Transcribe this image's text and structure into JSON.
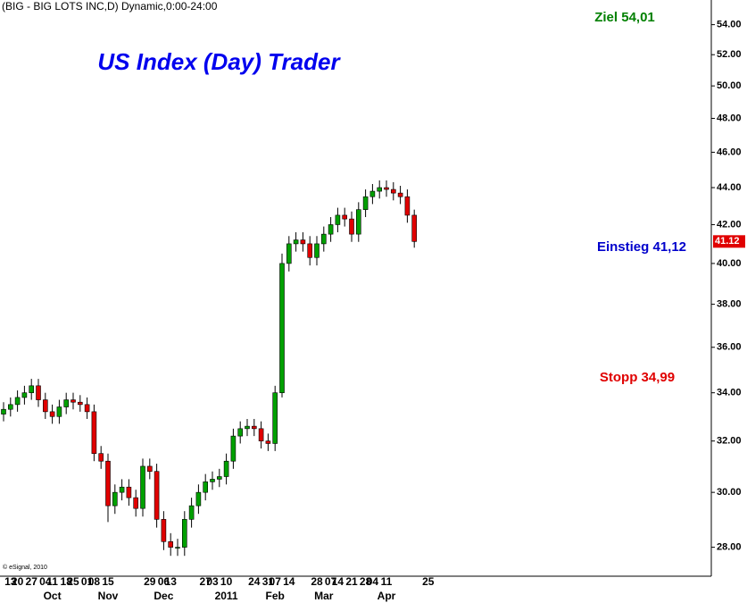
{
  "chart_data": {
    "type": "candlestick",
    "header": "(BIG - BIG LOTS INC,D) Dynamic,0:00-24:00",
    "title": "US Index (Day) Trader",
    "annotations": [
      "Ziel 54,01",
      "Einstieg 41,12",
      "Stopp 34,99"
    ],
    "watermark": "© eSignal, 2010",
    "log_scale": true,
    "up_color": "#00a000",
    "down_color": "#e00000",
    "ylim": [
      27,
      55.7
    ],
    "yticks": [
      {
        "value": 28,
        "label": "28.00"
      },
      {
        "value": 30,
        "label": "30.00"
      },
      {
        "value": 32,
        "label": "32.00"
      },
      {
        "value": 34,
        "label": "34.00"
      },
      {
        "value": 36,
        "label": "36.00"
      },
      {
        "value": 38,
        "label": "38.00"
      },
      {
        "value": 40,
        "label": "40.00"
      },
      {
        "value": 42,
        "label": "42.00"
      },
      {
        "value": 44,
        "label": "44.00"
      },
      {
        "value": 46,
        "label": "46.00"
      },
      {
        "value": 48,
        "label": "48.00"
      },
      {
        "value": 50,
        "label": "50.00"
      },
      {
        "value": 52,
        "label": "52.00"
      },
      {
        "value": 54,
        "label": "54.00"
      }
    ],
    "last_price": {
      "value": 41.12,
      "label": "41.12"
    },
    "categories": [
      null,
      "13",
      "20",
      null,
      "27",
      null,
      "04",
      "11",
      null,
      "18",
      "25",
      null,
      "01",
      "08",
      null,
      "15",
      null,
      null,
      null,
      null,
      null,
      "29",
      null,
      "06",
      "13",
      null,
      null,
      null,
      null,
      "27",
      "03",
      null,
      "10",
      null,
      null,
      null,
      "24",
      null,
      "31",
      "07",
      null,
      "14",
      null,
      null,
      null,
      "28",
      null,
      "07",
      "14",
      null,
      "21",
      null,
      "28",
      "04",
      null,
      "11",
      null,
      null,
      null,
      null,
      null,
      "25"
    ],
    "months": [
      null,
      null,
      null,
      null,
      null,
      null,
      null,
      "Oct",
      null,
      null,
      null,
      null,
      null,
      null,
      null,
      "Nov",
      null,
      null,
      null,
      null,
      null,
      null,
      null,
      "Dec",
      null,
      null,
      null,
      null,
      null,
      null,
      null,
      null,
      "2011",
      null,
      null,
      null,
      null,
      null,
      null,
      "Feb",
      null,
      null,
      null,
      null,
      null,
      null,
      "Mar",
      null,
      null,
      null,
      null,
      null,
      null,
      null,
      null,
      "Apr",
      null,
      null,
      null,
      null,
      null,
      null
    ],
    "open": [
      33.1,
      33.3,
      33.5,
      33.8,
      34.0,
      34.3,
      33.7,
      33.2,
      33.0,
      33.4,
      33.7,
      33.6,
      33.5,
      33.2,
      31.5,
      31.2,
      29.5,
      30.0,
      30.2,
      29.8,
      29.4,
      31.0,
      30.8,
      29.0,
      28.2,
      28.0,
      28.0,
      29.0,
      29.5,
      30.0,
      30.4,
      30.5,
      30.6,
      31.2,
      32.2,
      32.5,
      32.6,
      32.5,
      32.0,
      31.9,
      34.0,
      40.0,
      41.0,
      41.2,
      41.0,
      40.3,
      41.0,
      41.5,
      42.0,
      42.5,
      42.3,
      41.5,
      42.8,
      43.5,
      43.8,
      44.0,
      43.9,
      43.7,
      43.5,
      42.5,
      null,
      null
    ],
    "high": [
      33.6,
      33.8,
      34.1,
      34.3,
      34.6,
      34.6,
      34.0,
      33.5,
      33.7,
      34.0,
      34.0,
      33.9,
      33.8,
      33.5,
      31.8,
      31.5,
      30.3,
      30.5,
      30.5,
      30.1,
      31.3,
      31.3,
      31.1,
      29.3,
      28.5,
      28.3,
      29.3,
      29.8,
      30.3,
      30.7,
      30.8,
      30.9,
      31.5,
      32.5,
      32.8,
      32.9,
      32.9,
      32.8,
      32.3,
      34.3,
      40.5,
      41.4,
      41.6,
      41.6,
      41.4,
      41.4,
      41.9,
      42.4,
      42.9,
      42.9,
      42.7,
      43.2,
      43.9,
      44.2,
      44.4,
      44.4,
      44.3,
      44.1,
      43.9,
      42.8,
      null,
      null
    ],
    "low": [
      32.8,
      33.0,
      33.2,
      33.5,
      33.7,
      33.4,
      32.9,
      32.7,
      32.7,
      33.1,
      33.3,
      33.2,
      32.9,
      31.2,
      30.9,
      28.9,
      29.2,
      29.7,
      29.5,
      29.1,
      29.1,
      30.5,
      28.7,
      27.9,
      27.7,
      27.7,
      27.7,
      28.7,
      29.2,
      29.7,
      30.1,
      30.2,
      30.3,
      30.9,
      31.9,
      32.2,
      32.2,
      31.7,
      31.6,
      31.6,
      33.8,
      39.6,
      40.6,
      40.6,
      39.9,
      39.9,
      40.6,
      41.1,
      41.6,
      41.9,
      41.1,
      41.1,
      42.4,
      43.1,
      43.4,
      43.5,
      43.3,
      43.1,
      42.1,
      40.8,
      null,
      null
    ],
    "close": [
      33.3,
      33.5,
      33.8,
      34.0,
      34.3,
      33.7,
      33.2,
      33.0,
      33.4,
      33.7,
      33.6,
      33.5,
      33.2,
      31.5,
      31.2,
      29.5,
      30.0,
      30.2,
      29.8,
      29.4,
      31.0,
      30.8,
      29.0,
      28.2,
      28.0,
      28.0,
      29.0,
      29.5,
      30.0,
      30.4,
      30.5,
      30.6,
      31.2,
      32.2,
      32.5,
      32.6,
      32.5,
      32.0,
      31.9,
      34.0,
      40.0,
      41.0,
      41.2,
      41.0,
      40.3,
      41.0,
      41.5,
      42.0,
      42.5,
      42.3,
      41.5,
      42.8,
      43.5,
      43.8,
      44.0,
      43.9,
      43.7,
      43.5,
      42.5,
      41.12,
      null,
      null
    ]
  }
}
